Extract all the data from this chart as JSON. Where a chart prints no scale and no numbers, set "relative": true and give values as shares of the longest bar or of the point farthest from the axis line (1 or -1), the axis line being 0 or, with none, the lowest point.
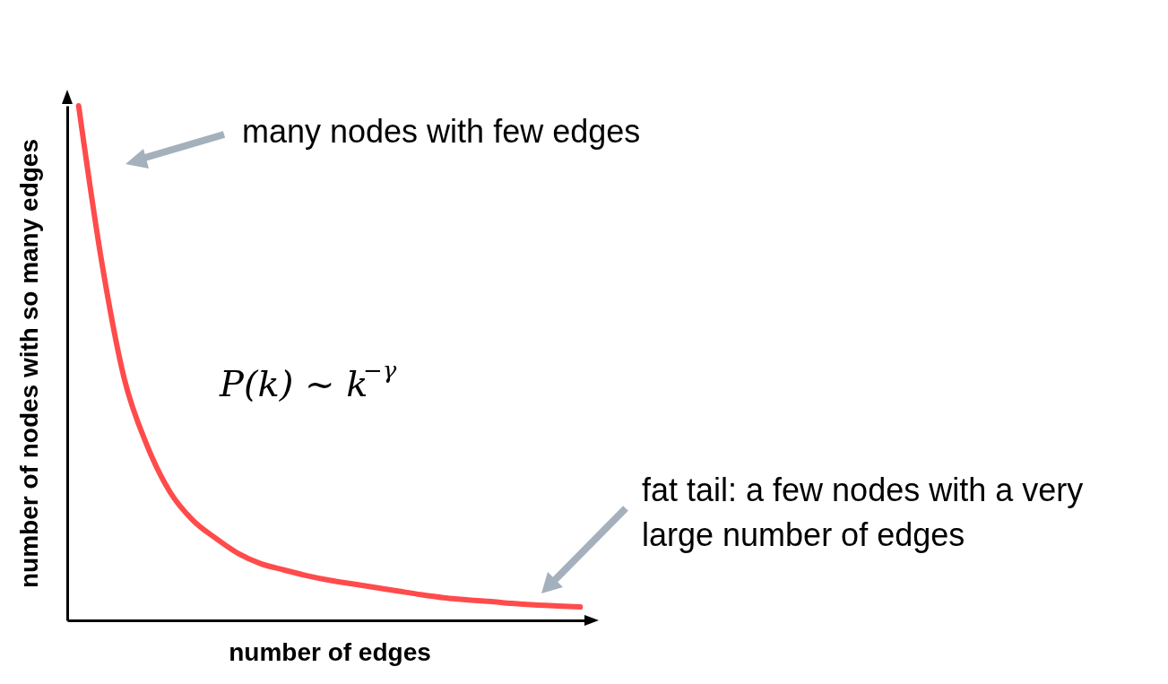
{
  "chart_data": {
    "type": "line",
    "relative": true,
    "xlabel": "number of edges",
    "ylabel": "number of nodes with so many edges",
    "categories": [
      null,
      null,
      null,
      null,
      null,
      null,
      null,
      null,
      null,
      null,
      null,
      null,
      null,
      null,
      null,
      null,
      null,
      null,
      null,
      null,
      null,
      null,
      null
    ],
    "series": [
      {
        "color": "#ff4b4b",
        "values": [
          1.0,
          0.7,
          0.47,
          0.34,
          0.25,
          0.195,
          0.16,
          0.13,
          0.11,
          0.098,
          0.087,
          0.078,
          0.071,
          0.064,
          0.057,
          0.05,
          0.044,
          0.04,
          0.037,
          0.033,
          0.03,
          0.028,
          0.026
        ]
      }
    ],
    "annotations": [
      "many nodes with few edges",
      "P(k) ~ k$^{−γ}$",
      "fat tail: a few nodes with a very\nlarge number of edges"
    ],
    "grid": false,
    "marker": "none",
    "line_style": "solid"
  }
}
